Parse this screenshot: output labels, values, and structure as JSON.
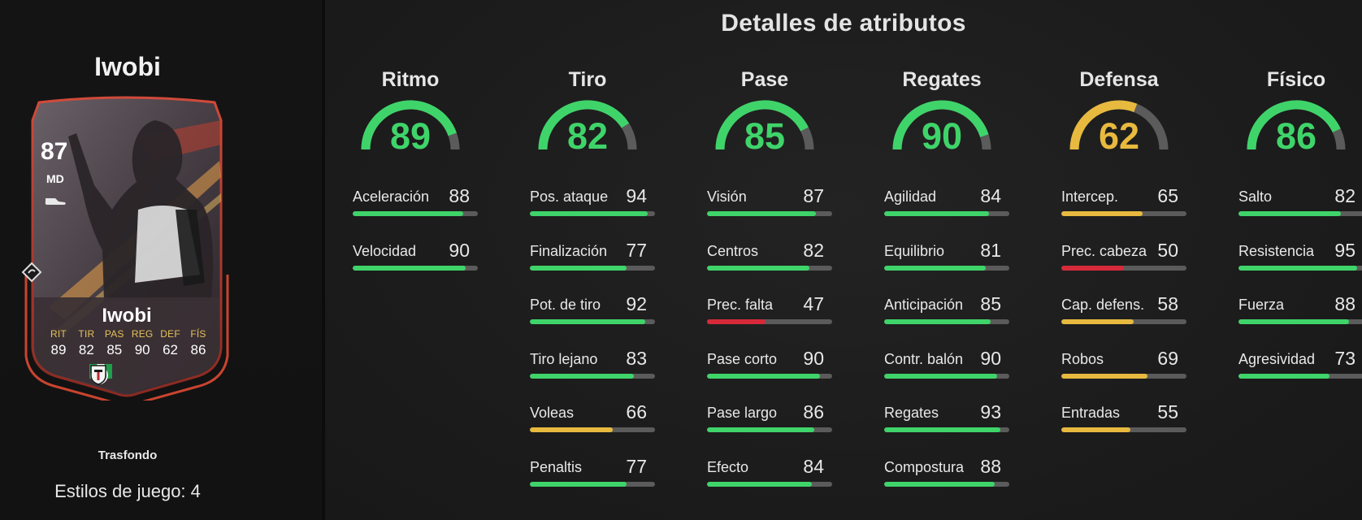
{
  "player": {
    "name": "Iwobi",
    "overall": "87",
    "position": "MD",
    "card_subtitle": "Trasfondo",
    "playstyles": "Estilos de juego: 4",
    "stats": [
      {
        "label": "RIT",
        "value": "89"
      },
      {
        "label": "TIR",
        "value": "82"
      },
      {
        "label": "PAS",
        "value": "85"
      },
      {
        "label": "REG",
        "value": "90"
      },
      {
        "label": "DEF",
        "value": "62"
      },
      {
        "label": "FÍS",
        "value": "86"
      }
    ],
    "badges": [
      "nigeria-flag-icon",
      "premier-league-icon",
      "fulham-crest-icon"
    ]
  },
  "section_title": "Detalles de atributos",
  "colors": {
    "green": "#3fd46a",
    "yellow": "#e7b93e",
    "red": "#d62a3a",
    "track": "#5b5b5b"
  },
  "categories": [
    {
      "name": "Ritmo",
      "value": "89",
      "color": "green",
      "stats": [
        {
          "label": "Aceleración",
          "value": "88",
          "color": "green"
        },
        {
          "label": "Velocidad",
          "value": "90",
          "color": "green"
        }
      ]
    },
    {
      "name": "Tiro",
      "value": "82",
      "color": "green",
      "stats": [
        {
          "label": "Pos. ataque",
          "value": "94",
          "color": "green"
        },
        {
          "label": "Finalización",
          "value": "77",
          "color": "green"
        },
        {
          "label": "Pot. de tiro",
          "value": "92",
          "color": "green"
        },
        {
          "label": "Tiro lejano",
          "value": "83",
          "color": "green"
        },
        {
          "label": "Voleas",
          "value": "66",
          "color": "yellow"
        },
        {
          "label": "Penaltis",
          "value": "77",
          "color": "green"
        }
      ]
    },
    {
      "name": "Pase",
      "value": "85",
      "color": "green",
      "stats": [
        {
          "label": "Visión",
          "value": "87",
          "color": "green"
        },
        {
          "label": "Centros",
          "value": "82",
          "color": "green"
        },
        {
          "label": "Prec. falta",
          "value": "47",
          "color": "red"
        },
        {
          "label": "Pase corto",
          "value": "90",
          "color": "green"
        },
        {
          "label": "Pase largo",
          "value": "86",
          "color": "green"
        },
        {
          "label": "Efecto",
          "value": "84",
          "color": "green"
        }
      ]
    },
    {
      "name": "Regates",
      "value": "90",
      "color": "green",
      "stats": [
        {
          "label": "Agilidad",
          "value": "84",
          "color": "green"
        },
        {
          "label": "Equilibrio",
          "value": "81",
          "color": "green"
        },
        {
          "label": "Anticipación",
          "value": "85",
          "color": "green"
        },
        {
          "label": "Contr. balón",
          "value": "90",
          "color": "green"
        },
        {
          "label": "Regates",
          "value": "93",
          "color": "green"
        },
        {
          "label": "Compostura",
          "value": "88",
          "color": "green"
        }
      ]
    },
    {
      "name": "Defensa",
      "value": "62",
      "color": "yellow",
      "stats": [
        {
          "label": "Intercep.",
          "value": "65",
          "color": "yellow"
        },
        {
          "label": "Prec. cabeza",
          "value": "50",
          "color": "red"
        },
        {
          "label": "Cap. defens.",
          "value": "58",
          "color": "yellow"
        },
        {
          "label": "Robos",
          "value": "69",
          "color": "yellow"
        },
        {
          "label": "Entradas",
          "value": "55",
          "color": "yellow"
        }
      ]
    },
    {
      "name": "Físico",
      "value": "86",
      "color": "green",
      "stats": [
        {
          "label": "Salto",
          "value": "82",
          "color": "green"
        },
        {
          "label": "Resistencia",
          "value": "95",
          "color": "green"
        },
        {
          "label": "Fuerza",
          "value": "88",
          "color": "green"
        },
        {
          "label": "Agresividad",
          "value": "73",
          "color": "green"
        }
      ]
    }
  ]
}
